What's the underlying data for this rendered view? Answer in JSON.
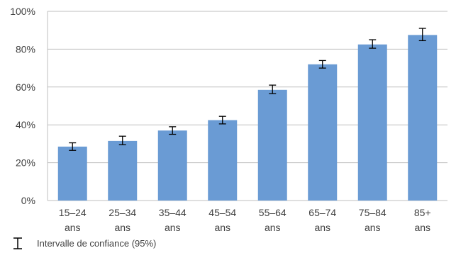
{
  "chart_data": {
    "type": "bar",
    "categories": [
      [
        "15–24",
        "ans"
      ],
      [
        "25–34",
        "ans"
      ],
      [
        "35–44",
        "ans"
      ],
      [
        "45–54",
        "ans"
      ],
      [
        "55–64",
        "ans"
      ],
      [
        "65–74",
        "ans"
      ],
      [
        "75–84",
        "ans"
      ],
      [
        "85+",
        "ans"
      ]
    ],
    "values": [
      28.5,
      31.5,
      37,
      42.5,
      58.5,
      72,
      82.5,
      87.5
    ],
    "ci_low": [
      26.5,
      29.5,
      35,
      40.5,
      56.5,
      70,
      80.5,
      84.5
    ],
    "ci_high": [
      30.5,
      34,
      39,
      44.5,
      61,
      74,
      85,
      91
    ],
    "ylim": [
      0,
      100
    ],
    "yticks": [
      0,
      20,
      40,
      60,
      80,
      100
    ],
    "ytick_labels": [
      "0%",
      "20%",
      "40%",
      "60%",
      "80%",
      "100%"
    ],
    "grid": true,
    "bar_color": "#6a9bd4",
    "grid_color": "#bfbfbf",
    "error_bar_color": "#000000",
    "legend": {
      "label": "Intervalle de confiance (95%)",
      "placement": "bottom-left"
    }
  }
}
